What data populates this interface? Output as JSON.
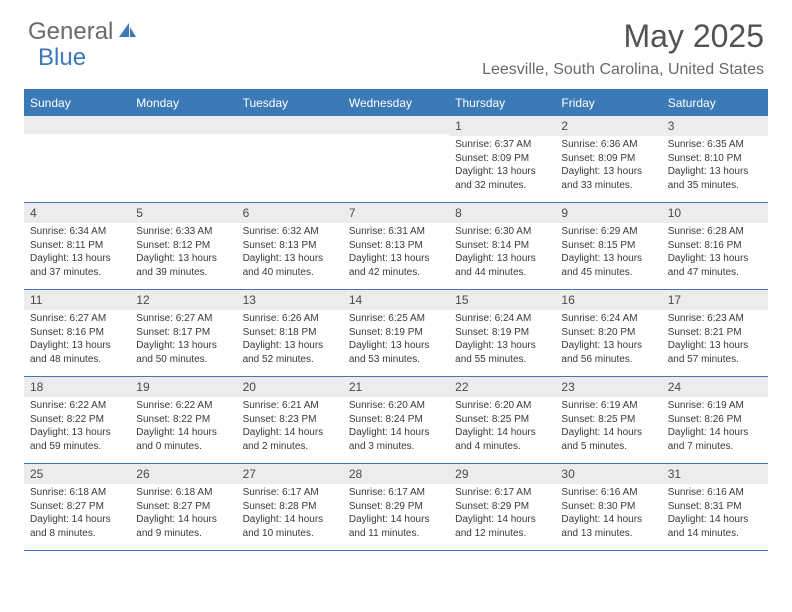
{
  "logo": {
    "text1": "General",
    "text2": "Blue"
  },
  "title": "May 2025",
  "location": "Leesville, South Carolina, United States",
  "colors": {
    "accent": "#3b79b7",
    "headerText": "#ffffff",
    "numBg": "#ececec"
  },
  "dayHeaders": [
    "Sunday",
    "Monday",
    "Tuesday",
    "Wednesday",
    "Thursday",
    "Friday",
    "Saturday"
  ],
  "weeks": [
    [
      {
        "n": "",
        "sr": "",
        "ss": "",
        "dl": ""
      },
      {
        "n": "",
        "sr": "",
        "ss": "",
        "dl": ""
      },
      {
        "n": "",
        "sr": "",
        "ss": "",
        "dl": ""
      },
      {
        "n": "",
        "sr": "",
        "ss": "",
        "dl": ""
      },
      {
        "n": "1",
        "sr": "Sunrise: 6:37 AM",
        "ss": "Sunset: 8:09 PM",
        "dl": "Daylight: 13 hours and 32 minutes."
      },
      {
        "n": "2",
        "sr": "Sunrise: 6:36 AM",
        "ss": "Sunset: 8:09 PM",
        "dl": "Daylight: 13 hours and 33 minutes."
      },
      {
        "n": "3",
        "sr": "Sunrise: 6:35 AM",
        "ss": "Sunset: 8:10 PM",
        "dl": "Daylight: 13 hours and 35 minutes."
      }
    ],
    [
      {
        "n": "4",
        "sr": "Sunrise: 6:34 AM",
        "ss": "Sunset: 8:11 PM",
        "dl": "Daylight: 13 hours and 37 minutes."
      },
      {
        "n": "5",
        "sr": "Sunrise: 6:33 AM",
        "ss": "Sunset: 8:12 PM",
        "dl": "Daylight: 13 hours and 39 minutes."
      },
      {
        "n": "6",
        "sr": "Sunrise: 6:32 AM",
        "ss": "Sunset: 8:13 PM",
        "dl": "Daylight: 13 hours and 40 minutes."
      },
      {
        "n": "7",
        "sr": "Sunrise: 6:31 AM",
        "ss": "Sunset: 8:13 PM",
        "dl": "Daylight: 13 hours and 42 minutes."
      },
      {
        "n": "8",
        "sr": "Sunrise: 6:30 AM",
        "ss": "Sunset: 8:14 PM",
        "dl": "Daylight: 13 hours and 44 minutes."
      },
      {
        "n": "9",
        "sr": "Sunrise: 6:29 AM",
        "ss": "Sunset: 8:15 PM",
        "dl": "Daylight: 13 hours and 45 minutes."
      },
      {
        "n": "10",
        "sr": "Sunrise: 6:28 AM",
        "ss": "Sunset: 8:16 PM",
        "dl": "Daylight: 13 hours and 47 minutes."
      }
    ],
    [
      {
        "n": "11",
        "sr": "Sunrise: 6:27 AM",
        "ss": "Sunset: 8:16 PM",
        "dl": "Daylight: 13 hours and 48 minutes."
      },
      {
        "n": "12",
        "sr": "Sunrise: 6:27 AM",
        "ss": "Sunset: 8:17 PM",
        "dl": "Daylight: 13 hours and 50 minutes."
      },
      {
        "n": "13",
        "sr": "Sunrise: 6:26 AM",
        "ss": "Sunset: 8:18 PM",
        "dl": "Daylight: 13 hours and 52 minutes."
      },
      {
        "n": "14",
        "sr": "Sunrise: 6:25 AM",
        "ss": "Sunset: 8:19 PM",
        "dl": "Daylight: 13 hours and 53 minutes."
      },
      {
        "n": "15",
        "sr": "Sunrise: 6:24 AM",
        "ss": "Sunset: 8:19 PM",
        "dl": "Daylight: 13 hours and 55 minutes."
      },
      {
        "n": "16",
        "sr": "Sunrise: 6:24 AM",
        "ss": "Sunset: 8:20 PM",
        "dl": "Daylight: 13 hours and 56 minutes."
      },
      {
        "n": "17",
        "sr": "Sunrise: 6:23 AM",
        "ss": "Sunset: 8:21 PM",
        "dl": "Daylight: 13 hours and 57 minutes."
      }
    ],
    [
      {
        "n": "18",
        "sr": "Sunrise: 6:22 AM",
        "ss": "Sunset: 8:22 PM",
        "dl": "Daylight: 13 hours and 59 minutes."
      },
      {
        "n": "19",
        "sr": "Sunrise: 6:22 AM",
        "ss": "Sunset: 8:22 PM",
        "dl": "Daylight: 14 hours and 0 minutes."
      },
      {
        "n": "20",
        "sr": "Sunrise: 6:21 AM",
        "ss": "Sunset: 8:23 PM",
        "dl": "Daylight: 14 hours and 2 minutes."
      },
      {
        "n": "21",
        "sr": "Sunrise: 6:20 AM",
        "ss": "Sunset: 8:24 PM",
        "dl": "Daylight: 14 hours and 3 minutes."
      },
      {
        "n": "22",
        "sr": "Sunrise: 6:20 AM",
        "ss": "Sunset: 8:25 PM",
        "dl": "Daylight: 14 hours and 4 minutes."
      },
      {
        "n": "23",
        "sr": "Sunrise: 6:19 AM",
        "ss": "Sunset: 8:25 PM",
        "dl": "Daylight: 14 hours and 5 minutes."
      },
      {
        "n": "24",
        "sr": "Sunrise: 6:19 AM",
        "ss": "Sunset: 8:26 PM",
        "dl": "Daylight: 14 hours and 7 minutes."
      }
    ],
    [
      {
        "n": "25",
        "sr": "Sunrise: 6:18 AM",
        "ss": "Sunset: 8:27 PM",
        "dl": "Daylight: 14 hours and 8 minutes."
      },
      {
        "n": "26",
        "sr": "Sunrise: 6:18 AM",
        "ss": "Sunset: 8:27 PM",
        "dl": "Daylight: 14 hours and 9 minutes."
      },
      {
        "n": "27",
        "sr": "Sunrise: 6:17 AM",
        "ss": "Sunset: 8:28 PM",
        "dl": "Daylight: 14 hours and 10 minutes."
      },
      {
        "n": "28",
        "sr": "Sunrise: 6:17 AM",
        "ss": "Sunset: 8:29 PM",
        "dl": "Daylight: 14 hours and 11 minutes."
      },
      {
        "n": "29",
        "sr": "Sunrise: 6:17 AM",
        "ss": "Sunset: 8:29 PM",
        "dl": "Daylight: 14 hours and 12 minutes."
      },
      {
        "n": "30",
        "sr": "Sunrise: 6:16 AM",
        "ss": "Sunset: 8:30 PM",
        "dl": "Daylight: 14 hours and 13 minutes."
      },
      {
        "n": "31",
        "sr": "Sunrise: 6:16 AM",
        "ss": "Sunset: 8:31 PM",
        "dl": "Daylight: 14 hours and 14 minutes."
      }
    ]
  ]
}
